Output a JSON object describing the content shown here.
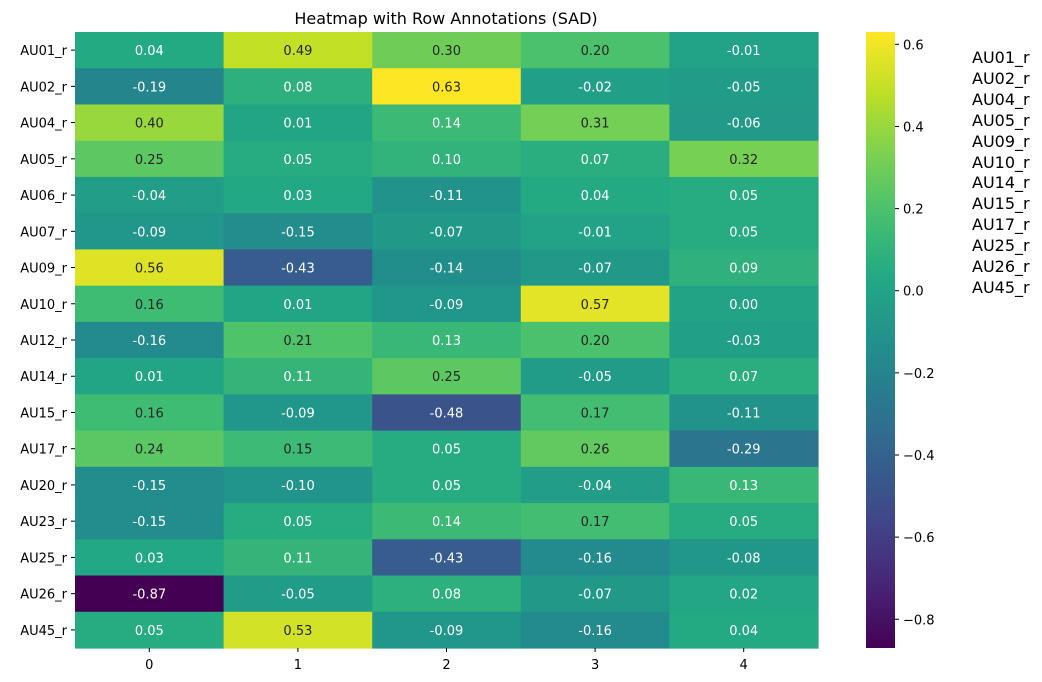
{
  "chart_data": {
    "type": "heatmap",
    "title": "Heatmap with Row Annotations (SAD)",
    "xlabel": "",
    "ylabel": "",
    "columns": [
      "0",
      "1",
      "2",
      "3",
      "4"
    ],
    "rows": [
      "AU01_r",
      "AU02_r",
      "AU04_r",
      "AU05_r",
      "AU06_r",
      "AU07_r",
      "AU09_r",
      "AU10_r",
      "AU12_r",
      "AU14_r",
      "AU15_r",
      "AU17_r",
      "AU20_r",
      "AU23_r",
      "AU25_r",
      "AU26_r",
      "AU45_r"
    ],
    "values": [
      [
        0.04,
        0.49,
        0.3,
        0.2,
        -0.01
      ],
      [
        -0.19,
        0.08,
        0.63,
        -0.02,
        -0.05
      ],
      [
        0.4,
        0.01,
        0.14,
        0.31,
        -0.06
      ],
      [
        0.25,
        0.05,
        0.1,
        0.07,
        0.32
      ],
      [
        -0.04,
        0.03,
        -0.11,
        0.04,
        0.05
      ],
      [
        -0.09,
        -0.15,
        -0.07,
        -0.01,
        0.05
      ],
      [
        0.56,
        -0.43,
        -0.14,
        -0.07,
        0.09
      ],
      [
        0.16,
        0.01,
        -0.09,
        0.57,
        0.0
      ],
      [
        -0.16,
        0.21,
        0.13,
        0.2,
        -0.03
      ],
      [
        0.01,
        0.11,
        0.25,
        -0.05,
        0.07
      ],
      [
        0.16,
        -0.09,
        -0.48,
        0.17,
        -0.11
      ],
      [
        0.24,
        0.15,
        0.05,
        0.26,
        -0.29
      ],
      [
        -0.15,
        -0.1,
        0.05,
        -0.04,
        0.13
      ],
      [
        -0.15,
        0.05,
        0.14,
        0.17,
        0.05
      ],
      [
        0.03,
        0.11,
        -0.43,
        -0.16,
        -0.08
      ],
      [
        -0.87,
        -0.05,
        0.08,
        -0.07,
        0.02
      ],
      [
        0.05,
        0.53,
        -0.09,
        -0.16,
        0.04
      ]
    ],
    "colormap": "viridis",
    "vmin": -0.87,
    "vmax": 0.63,
    "colorbar_ticks": [
      0.6,
      0.4,
      0.2,
      0.0,
      -0.2,
      -0.4,
      -0.6,
      -0.8
    ],
    "colorbar_tick_labels": [
      "0.6",
      "0.4",
      "0.2",
      "0.0",
      "−0.2",
      "−0.4",
      "−0.6",
      "−0.8"
    ],
    "row_annotations": [
      "AU01_r",
      "AU02_r",
      "AU04_r",
      "AU05_r",
      "AU09_r",
      "AU10_r",
      "AU14_r",
      "AU15_r",
      "AU17_r",
      "AU25_r",
      "AU26_r",
      "AU45_r"
    ]
  }
}
